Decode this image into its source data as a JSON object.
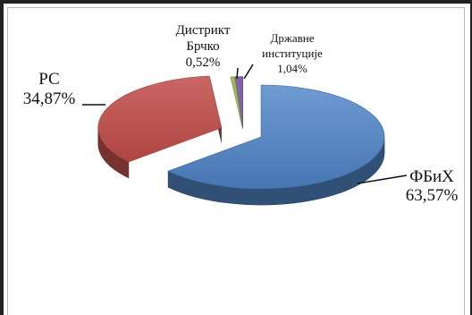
{
  "chart_data": {
    "type": "pie",
    "style": "3d-exploded",
    "legend": "none",
    "slices": [
      {
        "name": "ФБиХ",
        "value": 63.57,
        "label": "63,57%",
        "color": "#4f81bd"
      },
      {
        "name": "РС",
        "value": 34.87,
        "label": "34,87%",
        "color": "#c0504d"
      },
      {
        "name": "Дистрикт Брчко",
        "name_lines": [
          "Дистрикт",
          "Брчко"
        ],
        "value": 0.52,
        "label": "0,52%",
        "color": "#9bbb59"
      },
      {
        "name": "Државне институције",
        "name_lines": [
          "Државне",
          "институције"
        ],
        "value": 1.04,
        "label": "1,04%",
        "color": "#8064a2"
      }
    ]
  }
}
